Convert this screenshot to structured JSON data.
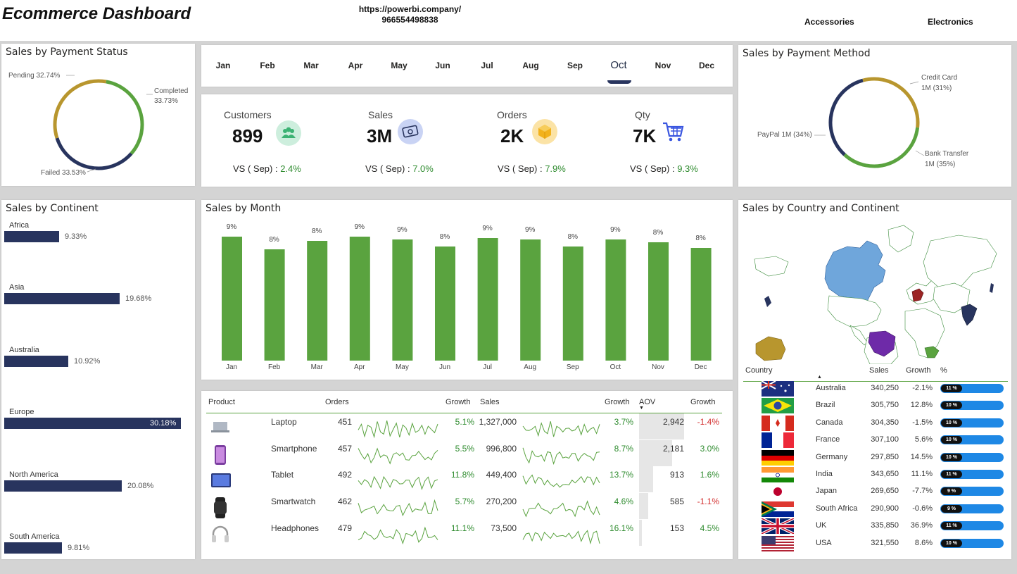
{
  "header": {
    "title": "Ecommerce Dashboard",
    "link_line1": "https://powerbi.company/",
    "link_line2": "966554498838",
    "slicers": [
      "Accessories",
      "Electronics"
    ]
  },
  "months": {
    "items": [
      "Jan",
      "Feb",
      "Mar",
      "Apr",
      "May",
      "Jun",
      "Jul",
      "Aug",
      "Sep",
      "Oct",
      "Nov",
      "Dec"
    ],
    "selected": "Oct"
  },
  "payment_status": {
    "title": "Sales by Payment Status",
    "slices": [
      {
        "label": "Pending 32.74%",
        "value": 32.74,
        "color": "#b8962e"
      },
      {
        "label": "Completed",
        "sub": "33.73%",
        "value": 33.73,
        "color": "#5aa33f"
      },
      {
        "label": "Failed 33.53%",
        "value": 33.53,
        "color": "#28345e"
      }
    ]
  },
  "payment_method": {
    "title": "Sales by Payment Method",
    "slices": [
      {
        "label": "Credit Card",
        "sub": "1M (31%)",
        "value": 31,
        "color": "#b8962e"
      },
      {
        "label": "Bank Transfer",
        "sub": "1M (35%)",
        "value": 35,
        "color": "#5aa33f"
      },
      {
        "label": "PayPal 1M (34%)",
        "value": 34,
        "color": "#28345e"
      }
    ]
  },
  "kpis": [
    {
      "label": "Customers",
      "value": "899",
      "vs": "VS ( Sep) : ",
      "pct": "2.4%",
      "icon": "customers-icon"
    },
    {
      "label": "Sales",
      "value": "3M",
      "vs": "VS ( Sep) : ",
      "pct": "7.0%",
      "icon": "money-icon"
    },
    {
      "label": "Orders",
      "value": "2K",
      "vs": "VS ( Sep) : ",
      "pct": "7.9%",
      "icon": "box-icon"
    },
    {
      "label": "Qty",
      "value": "7K",
      "vs": "VS ( Sep) : ",
      "pct": "9.3%",
      "icon": "cart-icon"
    }
  ],
  "continent": {
    "title": "Sales by Continent",
    "items": [
      {
        "name": "Africa",
        "value": 9.33,
        "label": "9.33%"
      },
      {
        "name": "Asia",
        "value": 19.68,
        "label": "19.68%"
      },
      {
        "name": "Australia",
        "value": 10.92,
        "label": "10.92%"
      },
      {
        "name": "Europe",
        "value": 30.18,
        "label": "30.18%"
      },
      {
        "name": "North America",
        "value": 20.08,
        "label": "20.08%"
      },
      {
        "name": "South America",
        "value": 9.81,
        "label": "9.81%"
      }
    ]
  },
  "chart_data": {
    "type": "bar",
    "title": "Sales by Month",
    "categories": [
      "Jan",
      "Feb",
      "Mar",
      "Apr",
      "May",
      "Jun",
      "Jul",
      "Aug",
      "Sep",
      "Oct",
      "Nov",
      "Dec"
    ],
    "values": [
      8.8,
      7.9,
      8.5,
      8.8,
      8.6,
      8.1,
      8.7,
      8.6,
      8.1,
      8.6,
      8.4,
      8.0
    ],
    "data_labels": [
      "9%",
      "8%",
      "8%",
      "9%",
      "9%",
      "8%",
      "9%",
      "9%",
      "8%",
      "9%",
      "8%",
      "8%"
    ],
    "color": "#5aa33f"
  },
  "products": {
    "headers": {
      "product": "Product",
      "orders": "Orders",
      "growth1": "Growth",
      "sales": "Sales",
      "growth2": "Growth",
      "aov": "AOV",
      "growth3": "Growth"
    },
    "rows": [
      {
        "name": "Laptop",
        "orders": "451",
        "og": "5.1%",
        "sales": "1,327,000",
        "sg": "3.7%",
        "aov": "2,942",
        "aov_value": 2942,
        "ag": "-1.4%"
      },
      {
        "name": "Smartphone",
        "orders": "457",
        "og": "5.5%",
        "sales": "996,800",
        "sg": "8.7%",
        "aov": "2,181",
        "aov_value": 2181,
        "ag": "3.0%"
      },
      {
        "name": "Tablet",
        "orders": "492",
        "og": "11.8%",
        "sales": "449,400",
        "sg": "13.7%",
        "aov": "913",
        "aov_value": 913,
        "ag": "1.6%"
      },
      {
        "name": "Smartwatch",
        "orders": "462",
        "og": "5.7%",
        "sales": "270,200",
        "sg": "4.6%",
        "aov": "585",
        "aov_value": 585,
        "ag": "-1.1%"
      },
      {
        "name": "Headphones",
        "orders": "479",
        "og": "11.1%",
        "sales": "73,500",
        "sg": "16.1%",
        "aov": "153",
        "aov_value": 153,
        "ag": "4.5%"
      }
    ]
  },
  "country": {
    "title": "Sales by Country and Continent",
    "headers": {
      "country": "Country",
      "sales": "Sales",
      "growth": "Growth",
      "pct": "%"
    },
    "rows": [
      {
        "name": "Australia",
        "sales": "340,250",
        "growth": "-2.1%",
        "pct": "11 %"
      },
      {
        "name": "Brazil",
        "sales": "305,750",
        "growth": "12.8%",
        "pct": "10 %"
      },
      {
        "name": "Canada",
        "sales": "304,350",
        "growth": "-1.5%",
        "pct": "10 %"
      },
      {
        "name": "France",
        "sales": "307,100",
        "growth": "5.6%",
        "pct": "10 %"
      },
      {
        "name": "Germany",
        "sales": "297,850",
        "growth": "14.5%",
        "pct": "10 %"
      },
      {
        "name": "India",
        "sales": "343,650",
        "growth": "11.1%",
        "pct": "11 %"
      },
      {
        "name": "Japan",
        "sales": "269,650",
        "growth": "-7.7%",
        "pct": "9 %"
      },
      {
        "name": "South Africa",
        "sales": "290,900",
        "growth": "-0.6%",
        "pct": "9 %"
      },
      {
        "name": "UK",
        "sales": "335,850",
        "growth": "36.9%",
        "pct": "11 %"
      },
      {
        "name": "USA",
        "sales": "321,550",
        "growth": "8.6%",
        "pct": "10 %"
      }
    ]
  }
}
